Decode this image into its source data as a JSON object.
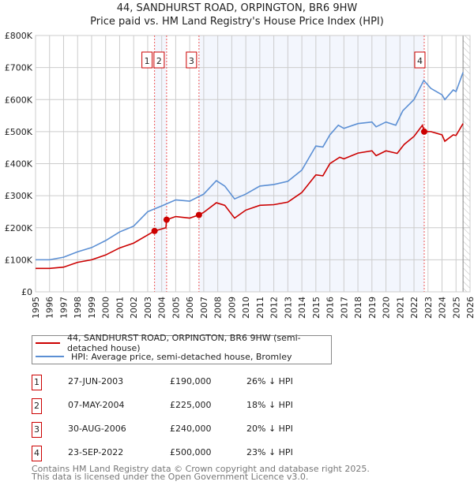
{
  "chart_data": {
    "type": "line",
    "title": "44, SANDHURST ROAD, ORPINGTON, BR6 9HW",
    "subtitle": "Price paid vs. HM Land Registry's House Price Index (HPI)",
    "xlim": [
      1995,
      2026
    ],
    "ylim": [
      0,
      800000
    ],
    "x_ticks": [
      "1995",
      "1996",
      "1997",
      "1998",
      "1999",
      "2000",
      "2001",
      "2002",
      "2003",
      "2004",
      "2005",
      "2006",
      "2007",
      "2008",
      "2009",
      "2010",
      "2011",
      "2012",
      "2013",
      "2014",
      "2015",
      "2016",
      "2017",
      "2018",
      "2019",
      "2020",
      "2021",
      "2022",
      "2023",
      "2024",
      "2025",
      "2026"
    ],
    "y_ticks": [
      {
        "v": 0,
        "label": "£0"
      },
      {
        "v": 100000,
        "label": "£100K"
      },
      {
        "v": 200000,
        "label": "£200K"
      },
      {
        "v": 300000,
        "label": "£300K"
      },
      {
        "v": 400000,
        "label": "£400K"
      },
      {
        "v": 500000,
        "label": "£500K"
      },
      {
        "v": 600000,
        "label": "£600K"
      },
      {
        "v": 700000,
        "label": "£700K"
      },
      {
        "v": 800000,
        "label": "£800K"
      }
    ],
    "grid": true,
    "series": [
      {
        "name": "44, SANDHURST ROAD, ORPINGTON, BR6 9HW (semi-detached house)",
        "color": "#cc0000",
        "points": [
          [
            1995,
            73
          ],
          [
            1996,
            73
          ],
          [
            1997,
            77
          ],
          [
            1998,
            92
          ],
          [
            1999,
            100
          ],
          [
            2000,
            115
          ],
          [
            2001,
            137
          ],
          [
            2002,
            152
          ],
          [
            2003.49,
            190
          ],
          [
            2004.3,
            200
          ],
          [
            2004.35,
            225
          ],
          [
            2005,
            235
          ],
          [
            2006,
            230
          ],
          [
            2006.66,
            240
          ],
          [
            2007,
            248
          ],
          [
            2007.9,
            278
          ],
          [
            2008.5,
            270
          ],
          [
            2009.2,
            230
          ],
          [
            2010,
            255
          ],
          [
            2011,
            270
          ],
          [
            2012,
            272
          ],
          [
            2013,
            280
          ],
          [
            2014,
            310
          ],
          [
            2015,
            365
          ],
          [
            2015.5,
            362
          ],
          [
            2016,
            400
          ],
          [
            2016.7,
            420
          ],
          [
            2017,
            415
          ],
          [
            2018,
            433
          ],
          [
            2019,
            440
          ],
          [
            2019.3,
            425
          ],
          [
            2020,
            440
          ],
          [
            2020.8,
            432
          ],
          [
            2021.3,
            460
          ],
          [
            2022,
            485
          ],
          [
            2022.6,
            520
          ],
          [
            2022.73,
            500
          ],
          [
            2023.2,
            500
          ],
          [
            2024,
            490
          ],
          [
            2024.2,
            470
          ],
          [
            2024.8,
            490
          ],
          [
            2025,
            488
          ],
          [
            2025.5,
            525
          ]
        ]
      },
      {
        "name": "HPI: Average price, semi-detached house, Bromley",
        "color": "#5b8fd4",
        "points": [
          [
            1995,
            100
          ],
          [
            1996,
            100
          ],
          [
            1997,
            108
          ],
          [
            1998,
            125
          ],
          [
            1999,
            138
          ],
          [
            2000,
            160
          ],
          [
            2001,
            187
          ],
          [
            2002,
            205
          ],
          [
            2003,
            250
          ],
          [
            2004,
            268
          ],
          [
            2005,
            287
          ],
          [
            2006,
            283
          ],
          [
            2007,
            305
          ],
          [
            2007.9,
            347
          ],
          [
            2008.5,
            330
          ],
          [
            2009.2,
            290
          ],
          [
            2010,
            305
          ],
          [
            2011,
            330
          ],
          [
            2012,
            335
          ],
          [
            2013,
            345
          ],
          [
            2014,
            380
          ],
          [
            2015,
            455
          ],
          [
            2015.5,
            452
          ],
          [
            2016,
            490
          ],
          [
            2016.6,
            520
          ],
          [
            2017,
            510
          ],
          [
            2018,
            525
          ],
          [
            2019,
            530
          ],
          [
            2019.3,
            515
          ],
          [
            2020,
            530
          ],
          [
            2020.7,
            520
          ],
          [
            2021.2,
            565
          ],
          [
            2022,
            600
          ],
          [
            2022.7,
            660
          ],
          [
            2023.2,
            635
          ],
          [
            2024,
            615
          ],
          [
            2024.2,
            600
          ],
          [
            2024.8,
            630
          ],
          [
            2025,
            625
          ],
          [
            2025.5,
            685
          ]
        ]
      }
    ],
    "sales": [
      {
        "n": "1",
        "x": 2003.49,
        "y": 190,
        "date": "27-JUN-2003",
        "price": "£190,000",
        "hpi": "26% ↓ HPI"
      },
      {
        "n": "2",
        "x": 2004.35,
        "y": 225,
        "date": "07-MAY-2004",
        "price": "£225,000",
        "hpi": "18% ↓ HPI"
      },
      {
        "n": "3",
        "x": 2006.66,
        "y": 240,
        "date": "30-AUG-2006",
        "price": "£240,000",
        "hpi": "20% ↓ HPI"
      },
      {
        "n": "4",
        "x": 2022.73,
        "y": 500,
        "date": "23-SEP-2022",
        "price": "£500,000",
        "hpi": "23% ↓ HPI"
      }
    ],
    "legend_position": "below"
  },
  "footer": {
    "line1": "Contains HM Land Registry data © Crown copyright and database right 2025.",
    "line2": "This data is licensed under the Open Government Licence v3.0."
  }
}
